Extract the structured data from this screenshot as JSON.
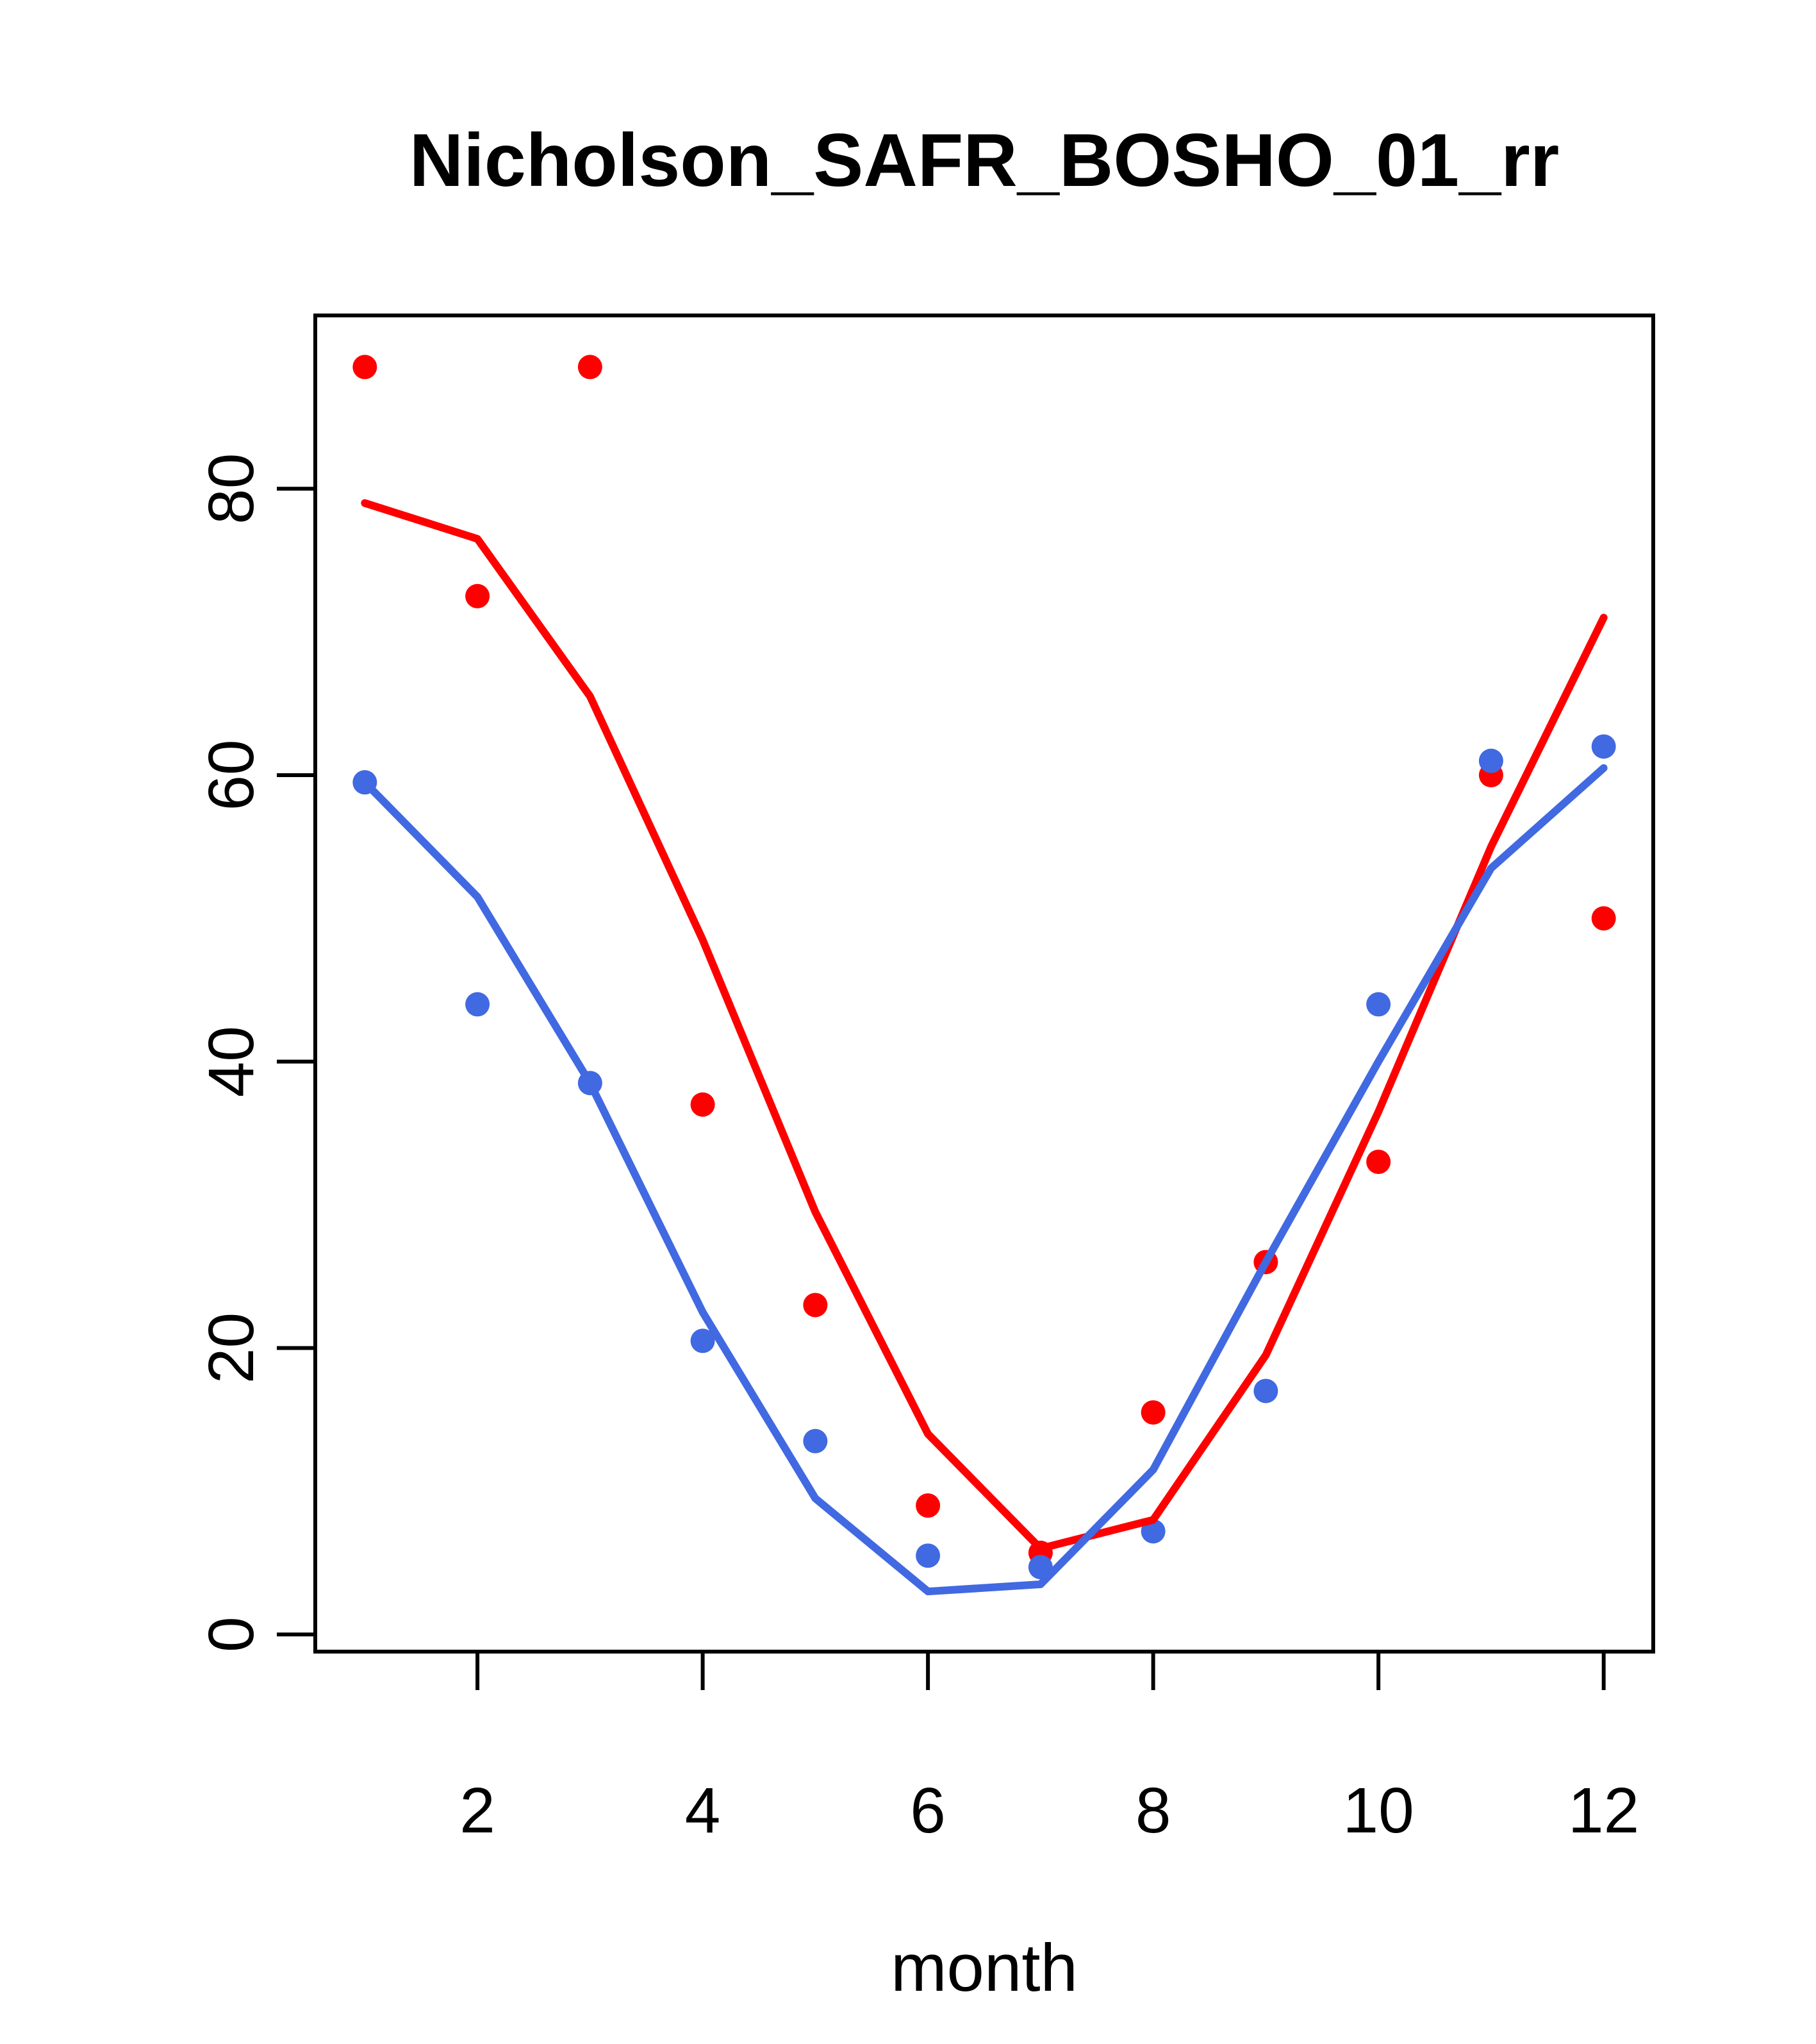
{
  "page": {
    "background_color": "#ffffff"
  },
  "chart_data": {
    "type": "scatter",
    "title": "Nicholson_SAFR_BOSHO_01_rr",
    "xlabel": "month",
    "ylabel": "",
    "grid": false,
    "legend_position": "none",
    "x": [
      1,
      2,
      3,
      4,
      5,
      6,
      7,
      8,
      9,
      10,
      11,
      12
    ],
    "x_ticks": [
      2,
      4,
      6,
      8,
      10,
      12
    ],
    "y_ticks": [
      0,
      20,
      40,
      60,
      80
    ],
    "xlim": [
      0.56,
      12.44
    ],
    "ylim": [
      -1.2,
      92.1
    ],
    "colors": {
      "red": "#ff0000",
      "blue": "#4169e1",
      "axis": "#000000"
    },
    "series": [
      {
        "name": "red-points",
        "kind": "points",
        "color": "#ff0000",
        "values": [
          88.5,
          72.5,
          88.5,
          37,
          23,
          9,
          5.7,
          15.5,
          26,
          33,
          60,
          50
        ]
      },
      {
        "name": "blue-points",
        "kind": "points",
        "color": "#4169e1",
        "values": [
          59.5,
          44,
          38.5,
          20.5,
          13.5,
          5.5,
          4.7,
          7.2,
          17,
          44,
          61,
          62
        ]
      },
      {
        "name": "red-line",
        "kind": "line",
        "color": "#ff0000",
        "values": [
          79,
          76.5,
          65.5,
          48.5,
          29.5,
          14,
          6,
          8,
          19.5,
          36.5,
          55,
          71
        ]
      },
      {
        "name": "blue-line",
        "kind": "line",
        "color": "#4169e1",
        "values": [
          59.5,
          51.5,
          38.5,
          22.5,
          9.5,
          3,
          3.5,
          11.5,
          26,
          40,
          53.5,
          60.5
        ]
      }
    ]
  }
}
